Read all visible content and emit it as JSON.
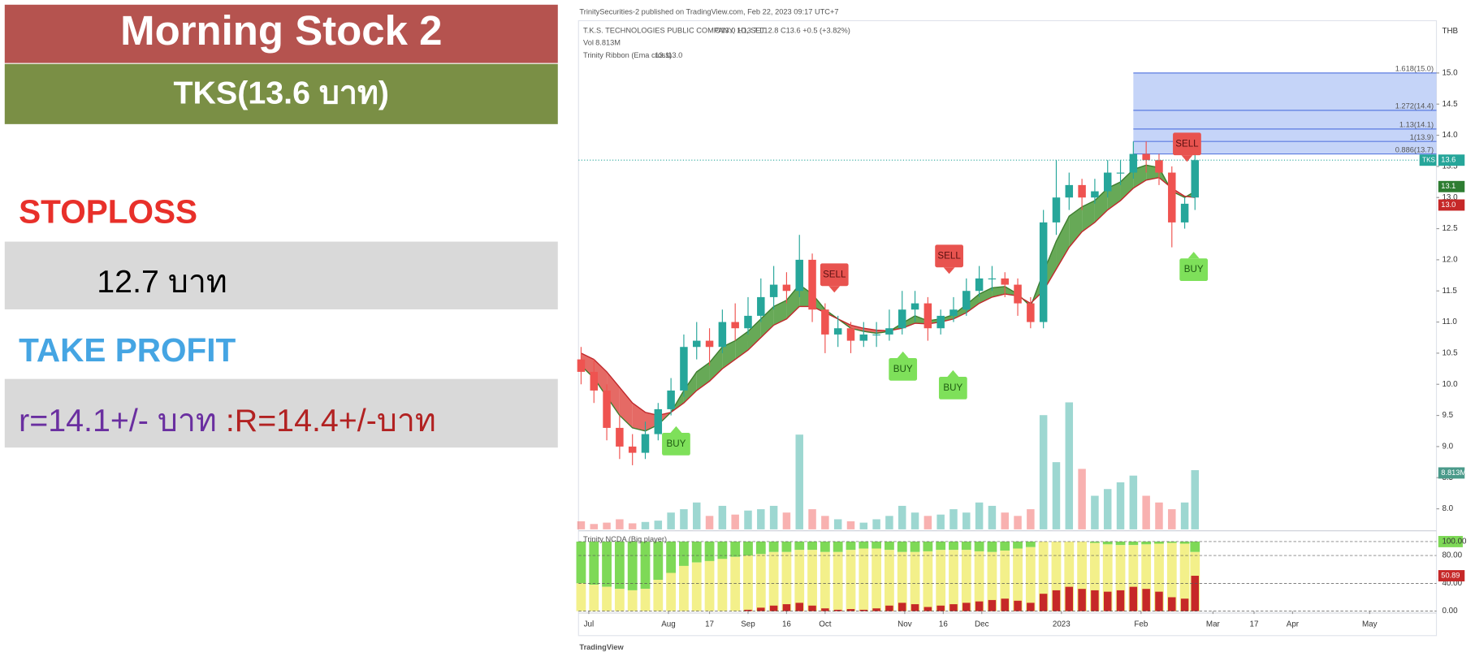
{
  "panel": {
    "title": "Morning Stock 2",
    "subtitle": "TKS(13.6 บาท)",
    "stoploss_label": "STOPLOSS",
    "stoploss_value": "12.7 บาท",
    "take_profit_label": "TAKE PROFIT",
    "take_profit_r": "r=14.1+/- บาท ",
    "take_profit_R": ":R=14.4+/-บาท"
  },
  "chart_data": {
    "type": "candlestick",
    "source": "TrinitySecurities-2 published on TradingView.com, Feb 22, 2023 09:17 UTC+7",
    "symbol_line": "T.K.S. TECHNOLOGIES PUBLIC COMPANY, 1D, SET",
    "ohlc_line": "O13.0 H13.7 L12.8 C13.6 +0.5 (+3.82%)",
    "symbol_tag": "TKS",
    "currency": "THB",
    "footer": "TradingView",
    "up_color": "#26a69a",
    "down_color": "#ef5350",
    "x": [
      0,
      5,
      10,
      15,
      20,
      25,
      30,
      35,
      40,
      45,
      50,
      55,
      60,
      65,
      70,
      75,
      80,
      85,
      90,
      95,
      100,
      105,
      110,
      115,
      120,
      125,
      130,
      135,
      140,
      145,
      150,
      155,
      160,
      165,
      170,
      175,
      180,
      185,
      190,
      195,
      200,
      205,
      210,
      215,
      220,
      225,
      230,
      235,
      239
    ],
    "open": [
      10.4,
      10.2,
      9.9,
      9.3,
      9.0,
      8.9,
      9.2,
      9.6,
      9.9,
      10.6,
      10.7,
      10.6,
      11.0,
      10.9,
      11.1,
      11.4,
      11.6,
      11.5,
      12.0,
      11.2,
      10.8,
      10.9,
      10.7,
      10.8,
      10.8,
      10.9,
      11.2,
      11.3,
      10.9,
      11.1,
      11.2,
      11.5,
      11.7,
      11.7,
      11.6,
      11.3,
      11.0,
      12.6,
      13.0,
      13.2,
      13.0,
      13.1,
      13.4,
      13.4,
      13.7,
      13.6,
      13.4,
      12.6,
      13.0
    ],
    "high": [
      10.6,
      10.4,
      10.0,
      9.5,
      9.2,
      9.4,
      9.7,
      10.1,
      10.8,
      11.0,
      10.9,
      11.2,
      11.3,
      11.4,
      11.7,
      11.9,
      11.8,
      12.4,
      12.1,
      11.3,
      11.1,
      11.0,
      11.0,
      11.0,
      11.2,
      11.5,
      11.5,
      11.4,
      11.2,
      11.4,
      11.7,
      11.9,
      11.9,
      11.8,
      11.7,
      11.4,
      12.8,
      13.6,
      13.4,
      13.3,
      13.3,
      13.6,
      13.6,
      13.9,
      13.9,
      13.7,
      13.5,
      13.0,
      13.7
    ],
    "low": [
      10.0,
      9.7,
      9.1,
      8.8,
      8.7,
      8.8,
      9.1,
      9.5,
      9.8,
      10.4,
      10.3,
      10.5,
      10.7,
      10.8,
      11.0,
      11.2,
      11.3,
      11.4,
      11.0,
      10.5,
      10.6,
      10.5,
      10.6,
      10.6,
      10.7,
      10.8,
      11.0,
      10.7,
      10.8,
      11.0,
      11.1,
      11.4,
      11.5,
      11.4,
      11.1,
      10.9,
      10.9,
      12.4,
      12.8,
      12.8,
      12.9,
      13.0,
      13.2,
      13.3,
      13.4,
      13.2,
      12.2,
      12.5,
      12.8
    ],
    "close": [
      10.2,
      9.9,
      9.3,
      9.0,
      8.9,
      9.2,
      9.6,
      9.9,
      10.6,
      10.7,
      10.6,
      11.0,
      10.9,
      11.1,
      11.4,
      11.6,
      11.5,
      12.0,
      11.2,
      10.8,
      10.9,
      10.7,
      10.8,
      10.8,
      10.9,
      11.2,
      11.3,
      10.9,
      11.1,
      11.2,
      11.5,
      11.7,
      11.7,
      11.6,
      11.3,
      11.0,
      12.6,
      13.0,
      13.2,
      13.0,
      13.1,
      13.4,
      13.4,
      13.7,
      13.6,
      13.4,
      12.6,
      12.9,
      13.6
    ],
    "xlim": [
      -1,
      333
    ],
    "xticks": [
      {
        "value": 3,
        "label": "Jul"
      },
      {
        "value": 34,
        "label": "Aug"
      },
      {
        "value": 50,
        "label": "17"
      },
      {
        "value": 65,
        "label": "Sep"
      },
      {
        "value": 80,
        "label": "16"
      },
      {
        "value": 95,
        "label": "Oct"
      },
      {
        "value": 126,
        "label": "Nov"
      },
      {
        "value": 141,
        "label": "16"
      },
      {
        "value": 156,
        "label": "Dec"
      },
      {
        "value": 187,
        "label": "2023"
      },
      {
        "value": 218,
        "label": "Feb"
      },
      {
        "value": 246,
        "label": "Mar"
      },
      {
        "value": 262,
        "label": "17"
      },
      {
        "value": 277,
        "label": "Apr"
      },
      {
        "value": 307,
        "label": "May"
      }
    ],
    "ylim": [
      7.67,
      15.84
    ],
    "yticks": [
      {
        "value": 8,
        "label": "8.0"
      },
      {
        "value": 8.5,
        "label": "8.5"
      },
      {
        "value": 9,
        "label": "9.0"
      },
      {
        "value": 9.5,
        "label": "9.5"
      },
      {
        "value": 10,
        "label": "10.0"
      },
      {
        "value": 10.5,
        "label": "10.5"
      },
      {
        "value": 11,
        "label": "11.0"
      },
      {
        "value": 11.5,
        "label": "11.5"
      },
      {
        "value": 12,
        "label": "12.0"
      },
      {
        "value": 12.5,
        "label": "12.5"
      },
      {
        "value": 13,
        "label": "13.0"
      },
      {
        "value": 13.5,
        "label": "13.5"
      },
      {
        "value": 14,
        "label": "14.0"
      },
      {
        "value": 14.5,
        "label": "14.5"
      },
      {
        "value": 15,
        "label": "15.0"
      }
    ],
    "ribbon": {
      "name": "Trinity Ribbon (Ema cross)",
      "up_color": "#4c9a3a",
      "down_color": "#e0504a",
      "series": [
        {
          "name": "fast",
          "color": "#3d7d2e",
          "values": [
            10.3,
            10.1,
            9.8,
            9.5,
            9.3,
            9.25,
            9.35,
            9.55,
            9.9,
            10.2,
            10.35,
            10.6,
            10.7,
            10.85,
            11.05,
            11.25,
            11.35,
            11.6,
            11.45,
            11.2,
            11.05,
            10.9,
            10.85,
            10.82,
            10.85,
            10.98,
            11.1,
            11.02,
            11.05,
            11.12,
            11.28,
            11.45,
            11.55,
            11.57,
            11.45,
            11.25,
            11.8,
            12.3,
            12.7,
            12.85,
            12.95,
            13.15,
            13.25,
            13.45,
            13.52,
            13.48,
            13.1,
            13.0,
            13.1
          ],
          "label": "13.1"
        },
        {
          "name": "slow",
          "color": "#c0282b",
          "values": [
            10.5,
            10.4,
            10.2,
            9.95,
            9.7,
            9.55,
            9.5,
            9.55,
            9.7,
            9.9,
            10.05,
            10.25,
            10.4,
            10.55,
            10.75,
            10.95,
            11.05,
            11.25,
            11.25,
            11.15,
            11.05,
            10.95,
            10.9,
            10.87,
            10.86,
            10.9,
            10.98,
            10.97,
            11.0,
            11.05,
            11.15,
            11.3,
            11.4,
            11.45,
            11.42,
            11.3,
            11.5,
            11.85,
            12.2,
            12.45,
            12.6,
            12.8,
            12.95,
            13.15,
            13.28,
            13.32,
            13.15,
            13.02,
            13.0
          ],
          "label": "13.0"
        }
      ]
    },
    "volume": {
      "name": "Vol",
      "axis": "y2",
      "y2lim": [
        0,
        75.7
      ],
      "label": "8.813M",
      "values": [
        1.2,
        0.8,
        1.0,
        1.5,
        0.9,
        1.1,
        1.3,
        2.5,
        3.0,
        4.0,
        2.0,
        3.5,
        2.2,
        2.8,
        3.0,
        3.5,
        2.5,
        14.1,
        3.0,
        2.0,
        1.5,
        1.2,
        1.0,
        1.5,
        2.0,
        3.5,
        2.5,
        2.0,
        2.2,
        3.0,
        2.5,
        4.0,
        3.5,
        2.5,
        2.0,
        3.0,
        17.0,
        10.0,
        18.9,
        9.0,
        5.0,
        6.0,
        7.0,
        8.0,
        5.0,
        4.0,
        3.0,
        4.0,
        8.813
      ]
    },
    "signals": [
      {
        "label": "BUY",
        "x": 37,
        "y": 9.04
      },
      {
        "label": "SELL",
        "x": 98.6,
        "y": 11.76
      },
      {
        "label": "BUY",
        "x": 125.3,
        "y": 10.24
      },
      {
        "label": "SELL",
        "x": 143.3,
        "y": 12.06
      },
      {
        "label": "BUY",
        "x": 144.8,
        "y": 9.94
      },
      {
        "label": "SELL",
        "x": 235.9,
        "y": 13.86
      },
      {
        "label": "BUY",
        "x": 238.5,
        "y": 11.84
      }
    ],
    "fib": {
      "start": 215,
      "color": "#b7c9f6",
      "line_color": "#5b7be0",
      "levels": [
        {
          "value": 15.0,
          "label": "1.618(15.0)"
        },
        {
          "value": 14.4,
          "label": "1.272(14.4)"
        },
        {
          "value": 14.1,
          "label": "1.13(14.1)"
        },
        {
          "value": 13.9,
          "label": "1(13.9)"
        },
        {
          "value": 13.7,
          "label": "0.886(13.7)"
        }
      ]
    },
    "indicator": {
      "name": "Trinity NCDA (Big player)",
      "ylim": [
        0,
        113.5
      ],
      "yticks": [
        {
          "value": 100,
          "label": "100.00"
        },
        {
          "value": 80,
          "label": "80.00"
        },
        {
          "value": 40,
          "label": "40.00"
        },
        {
          "value": 0,
          "label": "0.00"
        }
      ],
      "series": [
        {
          "name": "big",
          "color": "#c62828",
          "values": [
            0,
            0,
            0,
            0,
            0,
            0,
            0,
            0,
            0,
            0,
            0,
            0,
            0,
            2,
            5,
            8,
            10,
            12,
            8,
            4,
            2,
            3,
            2,
            4,
            8,
            12,
            10,
            6,
            8,
            10,
            12,
            14,
            16,
            18,
            15,
            12,
            25,
            30,
            35,
            32,
            30,
            28,
            30,
            35,
            32,
            28,
            20,
            18,
            50.89
          ]
        },
        {
          "name": "mid",
          "color": "#f3f08a",
          "values": [
            40,
            38,
            35,
            32,
            30,
            32,
            45,
            55,
            65,
            70,
            72,
            75,
            78,
            80,
            82,
            85,
            85,
            88,
            88,
            85,
            85,
            88,
            90,
            90,
            88,
            85,
            85,
            86,
            88,
            88,
            88,
            86,
            85,
            87,
            90,
            92,
            100,
            100,
            100,
            100,
            98,
            96,
            95,
            95,
            96,
            97,
            98,
            97,
            85
          ]
        }
      ],
      "top_color": "#7ed957"
    }
  }
}
